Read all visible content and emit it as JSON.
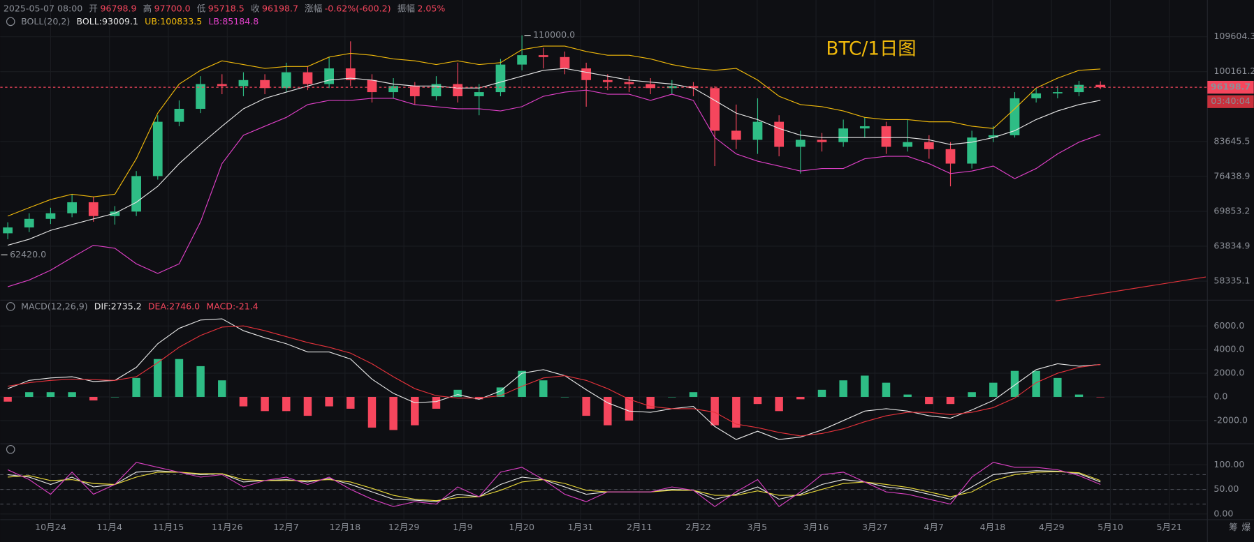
{
  "header": {
    "datetime": "2025-05-07 08:00",
    "color": "#f6465d",
    "fields": [
      {
        "label": "开",
        "value": 96798.9
      },
      {
        "label": "高",
        "value": 97700,
        "value_label": "97700.0"
      },
      {
        "label": "低",
        "value": 95718.5
      },
      {
        "label": "收",
        "value": 96198.7
      },
      {
        "label": "涨幅",
        "text": "-0.62%(-600.2)"
      },
      {
        "label": "振幅",
        "text": "2.05%"
      }
    ]
  },
  "footer_buttons": [
    "筹",
    "爆"
  ],
  "date_labels": [
    "10月24",
    "11月4",
    "11月15",
    "11月26",
    "12月7",
    "12月18",
    "12月29",
    "1月9",
    "1月20",
    "1月31",
    "2月11",
    "2月22",
    "3月5",
    "3月16",
    "3月27",
    "4月7",
    "4月18",
    "4月29",
    "5月10",
    "5月21"
  ],
  "chart_data": [
    {
      "type": "candlestick",
      "title": "BTC/1日图",
      "indicator": "BOLL(20,2)",
      "legend": [
        {
          "label": "BOLL:",
          "value": 93009.1,
          "color": "#e6e6e6"
        },
        {
          "label": "UB:",
          "value": 100833.5,
          "color": "#f0b90b"
        },
        {
          "label": "LB:",
          "value": 85184.8,
          "color": "#e040c8"
        }
      ],
      "up_color": "#2ebd85",
      "down_color": "#f6465d",
      "log": true,
      "ylim": [
        56000,
        120500
      ],
      "yticks": [
        109604.3,
        100161.2,
        83645.5,
        76438.9,
        69853.2,
        63834.9,
        58335.1
      ],
      "open": [
        66000,
        67000,
        68500,
        69500,
        71500,
        69000,
        69800,
        76500,
        88000,
        91000,
        97000,
        96500,
        98000,
        96000,
        100000,
        97000,
        101000,
        98000,
        95000,
        96500,
        94000,
        97000,
        94000,
        95000,
        102000,
        104500,
        104000,
        101000,
        98000,
        97500,
        97000,
        96000,
        96500,
        96000,
        86000,
        84000,
        88000,
        82500,
        84000,
        83500,
        86500,
        87000,
        82500,
        83500,
        82000,
        79000,
        84500,
        85000,
        93500,
        94700,
        95000,
        96798.9
      ],
      "high": [
        67900,
        69500,
        70500,
        73000,
        72500,
        70800,
        77500,
        89500,
        93000,
        99000,
        99500,
        100000,
        99500,
        102500,
        101500,
        104000,
        108300,
        99500,
        98500,
        97500,
        99000,
        102500,
        97000,
        103500,
        110000,
        106500,
        105500,
        102500,
        99500,
        99000,
        98500,
        98000,
        97500,
        96500,
        92000,
        93500,
        89500,
        86000,
        85500,
        88500,
        89000,
        88000,
        88500,
        85000,
        83500,
        86000,
        87000,
        95000,
        96000,
        96500,
        97800,
        97700
      ],
      "low": [
        65000,
        66200,
        67600,
        68800,
        68000,
        67500,
        69000,
        75800,
        87000,
        90000,
        94500,
        94000,
        94500,
        95000,
        95500,
        96000,
        96500,
        92500,
        93500,
        92000,
        93000,
        92500,
        89500,
        94000,
        100500,
        101000,
        99500,
        91500,
        95500,
        95000,
        94500,
        94500,
        94000,
        78500,
        82000,
        81000,
        80500,
        77000,
        81500,
        82500,
        84500,
        81000,
        81500,
        80000,
        74500,
        78000,
        83500,
        84500,
        92500,
        93500,
        94000,
        95718.5
      ],
      "close": [
        67000,
        68500,
        69500,
        71500,
        69000,
        69800,
        76500,
        88000,
        91000,
        97000,
        96500,
        98000,
        96000,
        100000,
        97000,
        101000,
        98000,
        95000,
        96500,
        94000,
        97000,
        94000,
        95000,
        102000,
        104500,
        104000,
        101000,
        98000,
        97500,
        97000,
        96000,
        96500,
        96000,
        86000,
        84000,
        88000,
        82500,
        84000,
        83500,
        86500,
        87000,
        82500,
        83500,
        82000,
        79000,
        84500,
        85000,
        93500,
        94700,
        95000,
        96800,
        96198.7
      ],
      "series": [
        {
          "color": "#e6e6e6",
          "values": [
            64000,
            65000,
            66500,
            67500,
            68500,
            69500,
            71500,
            74500,
            79000,
            83000,
            87000,
            91000,
            93500,
            95000,
            96500,
            98000,
            98500,
            98000,
            97000,
            96500,
            96500,
            96000,
            96000,
            97500,
            99000,
            100500,
            101000,
            100000,
            99000,
            98000,
            97500,
            97000,
            96000,
            93000,
            90000,
            88500,
            86500,
            85000,
            84500,
            84500,
            84500,
            84500,
            84500,
            84000,
            83000,
            83500,
            84500,
            86000,
            88500,
            90500,
            92000,
            93009.1
          ]
        },
        {
          "color": "#f0b90b",
          "values": [
            69000,
            70500,
            72000,
            73000,
            72500,
            73000,
            80000,
            90000,
            97000,
            100500,
            103000,
            102000,
            101000,
            101500,
            101500,
            104000,
            105000,
            104500,
            103500,
            103000,
            102000,
            103000,
            102000,
            102500,
            106000,
            107000,
            107000,
            105500,
            104500,
            104500,
            103500,
            102000,
            101000,
            100500,
            101000,
            98000,
            94000,
            92000,
            91500,
            90500,
            89000,
            88500,
            88500,
            88000,
            88000,
            87000,
            86500,
            91000,
            96000,
            98500,
            100500,
            100833.5
          ]
        },
        {
          "color": "#e040c8",
          "values": [
            57500,
            58500,
            60000,
            62000,
            64000,
            63500,
            61000,
            59500,
            61000,
            68000,
            79000,
            85000,
            87000,
            89000,
            92000,
            93000,
            93000,
            93500,
            93500,
            92000,
            91500,
            91000,
            91000,
            90500,
            91500,
            94000,
            95000,
            95500,
            94500,
            94500,
            93000,
            94500,
            93000,
            84500,
            81000,
            79500,
            78500,
            77500,
            78000,
            78000,
            80000,
            80500,
            80500,
            79000,
            77000,
            77500,
            78500,
            76000,
            78000,
            81000,
            83500,
            85184.8
          ]
        }
      ],
      "annotations": [
        {
          "value": 110000,
          "label": "110000.0"
        },
        {
          "value": 62420,
          "label": "62420.0"
        }
      ],
      "countdown": "03:40:04"
    },
    {
      "type": "macd",
      "indicator": "MACD(12,26,9)",
      "legend": [
        {
          "label": "DIF:",
          "value": 2735.2,
          "color": "#e6e6e6"
        },
        {
          "label": "DEA:",
          "value": 2746,
          "value_label": "2746.0",
          "color": "#f6465d"
        },
        {
          "label": "MACD:",
          "value": -21.4,
          "color": "#f6465d"
        }
      ],
      "ylim": [
        -3900,
        6900
      ],
      "yticks": [
        {
          "value": 6000,
          "label": "6000.0"
        },
        {
          "value": 4000,
          "label": "4000.0"
        },
        {
          "value": 2000,
          "label": "2000.0"
        },
        {
          "value": 0,
          "label": "0.0"
        },
        {
          "value": -2000,
          "label": "-2000.0"
        }
      ],
      "series": [
        {
          "color": "#e6e6e6",
          "values": [
            700,
            1400,
            1600,
            1700,
            1300,
            1400,
            2500,
            4500,
            5800,
            6500,
            6600,
            5600,
            5000,
            4500,
            3800,
            3800,
            3200,
            1500,
            300,
            -500,
            -400,
            200,
            -200,
            500,
            2000,
            2300,
            1800,
            600,
            -500,
            -1200,
            -1300,
            -1000,
            -800,
            -2500,
            -3600,
            -2900,
            -3600,
            -3400,
            -2800,
            -2000,
            -1200,
            -1000,
            -1200,
            -1600,
            -1800,
            -1100,
            -300,
            1000,
            2300,
            2800,
            2600,
            2735.2
          ]
        },
        {
          "color": "#e5323b",
          "values": [
            900,
            1200,
            1400,
            1500,
            1450,
            1400,
            1700,
            2900,
            4200,
            5200,
            5900,
            6000,
            5600,
            5100,
            4600,
            4200,
            3700,
            2800,
            1700,
            700,
            100,
            -100,
            -100,
            100,
            900,
            1600,
            1800,
            1400,
            700,
            -200,
            -800,
            -1000,
            -1000,
            -1300,
            -2300,
            -2600,
            -3000,
            -3300,
            -3100,
            -2700,
            -2100,
            -1600,
            -1300,
            -1300,
            -1500,
            -1300,
            -900,
            -100,
            1200,
            2000,
            2500,
            2746
          ]
        }
      ],
      "histogram": {
        "up_color": "#2ebd85",
        "down_color": "#f6465d",
        "values": [
          -400,
          400,
          400,
          400,
          -300,
          0,
          1600,
          3200,
          3200,
          2600,
          1400,
          -800,
          -1200,
          -1200,
          -1600,
          -800,
          -1000,
          -2600,
          -2800,
          -2400,
          -1000,
          600,
          -200,
          800,
          2200,
          1400,
          0,
          -1600,
          -2400,
          -2000,
          -1000,
          0,
          400,
          -2400,
          -2600,
          -600,
          -1200,
          -200,
          600,
          1400,
          1800,
          1200,
          200,
          -600,
          -600,
          400,
          1200,
          2200,
          2200,
          1600,
          200,
          -21.4
        ]
      }
    },
    {
      "type": "kdj",
      "ylim": [
        -10,
        120
      ],
      "yticks": [
        {
          "value": 100,
          "label": "100.00"
        },
        {
          "value": 50,
          "label": "50.00"
        },
        {
          "value": 0,
          "label": "0.00"
        }
      ],
      "levels": [
        80,
        50,
        20
      ],
      "series": [
        {
          "color": "#e6e6e6",
          "values": [
            80,
            75,
            60,
            75,
            55,
            60,
            85,
            88,
            85,
            80,
            82,
            65,
            68,
            70,
            65,
            72,
            60,
            45,
            30,
            28,
            25,
            40,
            35,
            60,
            75,
            70,
            55,
            40,
            45,
            45,
            45,
            50,
            48,
            30,
            40,
            55,
            30,
            40,
            60,
            70,
            65,
            55,
            50,
            40,
            30,
            55,
            80,
            85,
            88,
            87,
            82,
            65
          ]
        },
        {
          "color": "#e8d83a",
          "values": [
            75,
            78,
            68,
            70,
            62,
            60,
            75,
            85,
            85,
            82,
            82,
            70,
            68,
            68,
            68,
            70,
            65,
            52,
            38,
            30,
            27,
            33,
            35,
            48,
            65,
            70,
            62,
            48,
            45,
            45,
            45,
            48,
            48,
            38,
            38,
            47,
            38,
            38,
            50,
            62,
            65,
            60,
            54,
            45,
            35,
            45,
            68,
            80,
            85,
            86,
            84,
            68
          ]
        },
        {
          "color": "#d63fbf",
          "values": [
            90,
            70,
            40,
            85,
            40,
            60,
            105,
            95,
            85,
            75,
            80,
            55,
            68,
            75,
            60,
            75,
            50,
            30,
            15,
            25,
            20,
            55,
            35,
            85,
            95,
            70,
            40,
            25,
            45,
            45,
            45,
            55,
            48,
            15,
            45,
            70,
            15,
            45,
            80,
            85,
            65,
            45,
            40,
            30,
            20,
            75,
            105,
            95,
            95,
            90,
            78,
            60
          ]
        }
      ]
    }
  ]
}
